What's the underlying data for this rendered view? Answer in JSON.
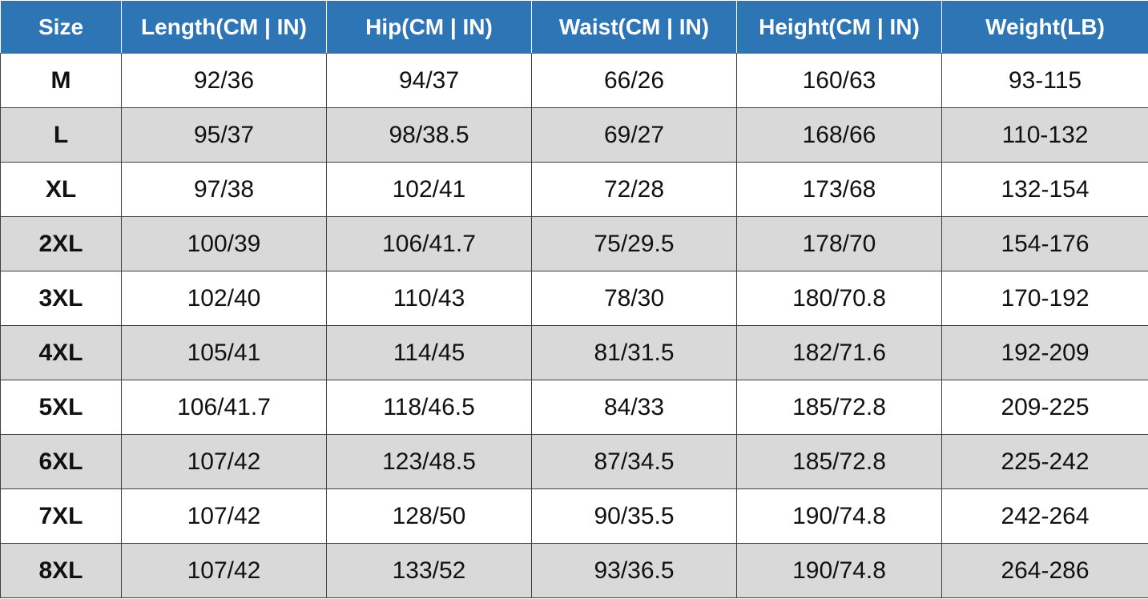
{
  "table": {
    "header": [
      "Size",
      "Length(CM | IN)",
      "Hip(CM | IN)",
      "Waist(CM | IN)",
      "Height(CM | IN)",
      "Weight(LB)"
    ],
    "rows": [
      [
        "M",
        "92/36",
        "94/37",
        "66/26",
        "160/63",
        "93-115"
      ],
      [
        "L",
        "95/37",
        "98/38.5",
        "69/27",
        "168/66",
        "110-132"
      ],
      [
        "XL",
        "97/38",
        "102/41",
        "72/28",
        "173/68",
        "132-154"
      ],
      [
        "2XL",
        "100/39",
        "106/41.7",
        "75/29.5",
        "178/70",
        "154-176"
      ],
      [
        "3XL",
        "102/40",
        "110/43",
        "78/30",
        "180/70.8",
        "170-192"
      ],
      [
        "4XL",
        "105/41",
        "114/45",
        "81/31.5",
        "182/71.6",
        "192-209"
      ],
      [
        "5XL",
        "106/41.7",
        "118/46.5",
        "84/33",
        "185/72.8",
        "209-225"
      ],
      [
        "6XL",
        "107/42",
        "123/48.5",
        "87/34.5",
        "185/72.8",
        "225-242"
      ],
      [
        "7XL",
        "107/42",
        "128/50",
        "90/35.5",
        "190/74.8",
        "242-264"
      ],
      [
        "8XL",
        "107/42",
        "133/52",
        "93/36.5",
        "190/74.8",
        "264-286"
      ]
    ]
  }
}
